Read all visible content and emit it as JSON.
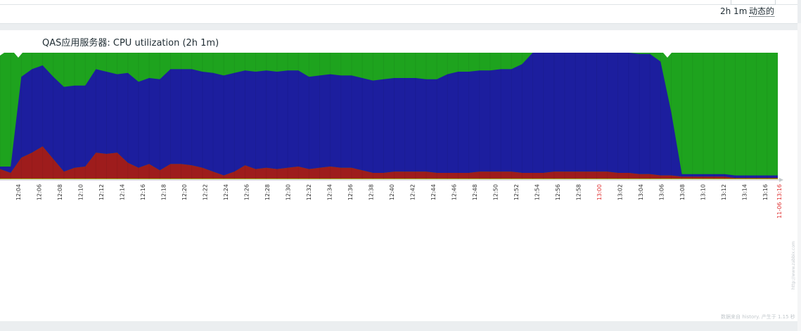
{
  "header": {
    "period_label": "2h 1m",
    "dynamic_label": "动态的"
  },
  "footer": {
    "note": "数据来自 history. 产生于 1.15 秒"
  },
  "watermark": "http://www.zabbix.com",
  "colors": {
    "idle": "#1ea31e",
    "user": "#1c1e9e",
    "system": "#9e1c1c",
    "iowait": "#a0c81e",
    "date_tick": "#e03030",
    "tick": "#333333"
  },
  "chart_data": {
    "type": "area",
    "title": "QAS应用服务器: CPU utilization (2h 1m)",
    "stacked": true,
    "x_ticks": [
      "12:04",
      "12:06",
      "12:08",
      "12:10",
      "12:12",
      "12:14",
      "12:16",
      "12:18",
      "12:20",
      "12:22",
      "12:24",
      "12:26",
      "12:28",
      "12:30",
      "12:32",
      "12:34",
      "12:36",
      "12:38",
      "12:40",
      "12:42",
      "12:44",
      "12:46",
      "12:48",
      "12:50",
      "12:52",
      "12:54",
      "12:56",
      "12:58",
      "13:00",
      "13:02",
      "13:04",
      "13:06",
      "13:08",
      "13:10",
      "13:12",
      "13:14",
      "13:16",
      "11-06 13:16"
    ],
    "highlight_ticks": [
      "13:00",
      "11-06 13:16"
    ],
    "ylim": [
      0,
      100
    ],
    "series": [
      {
        "values": [
          8,
          5,
          17,
          21,
          26,
          16,
          6,
          9,
          10,
          21,
          20,
          21,
          13,
          9,
          12,
          7,
          12,
          12,
          11,
          9,
          6,
          3,
          6,
          11,
          8,
          9,
          8,
          9,
          10,
          8,
          9,
          10,
          9,
          9,
          7,
          5,
          5,
          6,
          6,
          6,
          6,
          5,
          5,
          5,
          5,
          6,
          6,
          6,
          6,
          5,
          5,
          5,
          6,
          6,
          6,
          6,
          6,
          6,
          5,
          5,
          4,
          4,
          3,
          3,
          2,
          2,
          2,
          2,
          2,
          1,
          1,
          1,
          1,
          1
        ]
      },
      {
        "values": [
          2,
          5,
          64,
          66,
          64,
          65,
          67,
          65,
          64,
          66,
          65,
          62,
          71,
          68,
          68,
          72,
          75,
          75,
          76,
          76,
          78,
          79,
          78,
          75,
          77,
          77,
          77,
          77,
          76,
          73,
          73,
          73,
          73,
          73,
          73,
          73,
          74,
          74,
          74,
          74,
          73,
          74,
          78,
          80,
          80,
          80,
          80,
          81,
          81,
          86,
          95,
          95,
          95,
          95,
          95,
          95,
          95,
          95,
          95,
          95,
          95,
          95,
          90,
          50,
          2,
          2,
          2,
          2,
          2,
          2,
          2,
          2,
          2,
          2
        ]
      },
      {
        "values": [
          0.5,
          0.5,
          0.5,
          0.5,
          0.5,
          0.5,
          0.5,
          0.5,
          0.5,
          0.5,
          0.5,
          0.5,
          0.5,
          0.5,
          0.5,
          0.5,
          0.5,
          0.5,
          0.5,
          0.5,
          0.5,
          0.5,
          0.5,
          0.5,
          0.5,
          0.5,
          0.5,
          0.5,
          0.5,
          0.5,
          0.5,
          0.5,
          0.5,
          0.5,
          0.5,
          0.5,
          0.5,
          0.5,
          0.5,
          0.5,
          0.5,
          0.5,
          0.5,
          0.5,
          0.5,
          0.5,
          0.5,
          0.5,
          0.5,
          0.5,
          0.5,
          0.5,
          0.5,
          0.5,
          0.5,
          0.5,
          0.5,
          0.5,
          0.5,
          0.5,
          0.5,
          0.5,
          0.5,
          0.5,
          0.5,
          0.5,
          0.5,
          0.5,
          0.5,
          0.5,
          0.5,
          0.5,
          0.5,
          0.5
        ]
      }
    ]
  }
}
